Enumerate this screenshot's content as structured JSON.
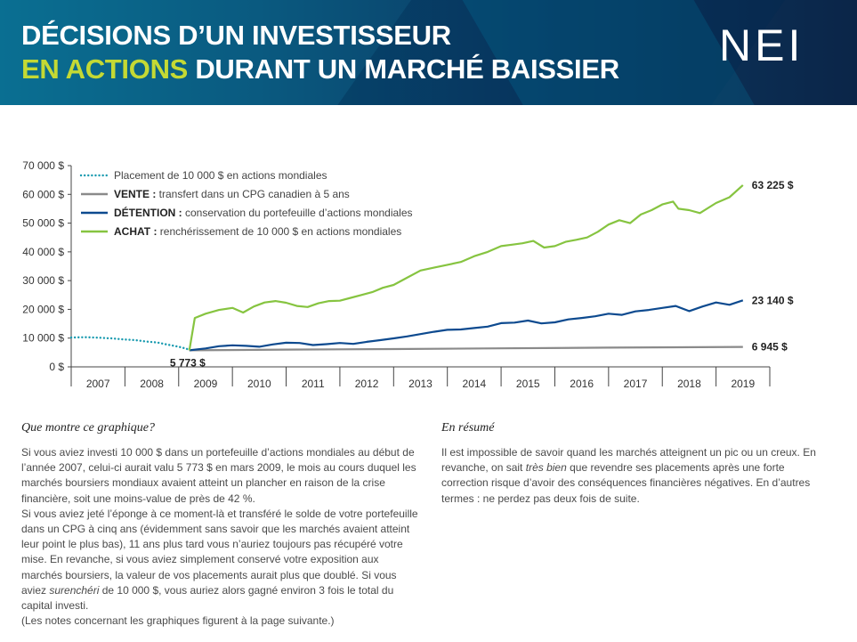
{
  "header": {
    "title_line1": "DÉCISIONS D’UN INVESTISSEUR",
    "title_line2_accent": "EN ACTIONS",
    "title_line2_rest": " DURANT UN MARCHÉ BAISSIER",
    "logo": "NEI",
    "colors": {
      "accent": "#c4d934",
      "banner_dark": "#0b2548",
      "banner_light": "#0a6f92"
    }
  },
  "chart_data": {
    "type": "line",
    "title": "",
    "xlabel": "",
    "ylabel": "",
    "ylim": [
      0,
      70000
    ],
    "y_ticks": [
      "0 $",
      "10 000 $",
      "20 000 $",
      "30 000 $",
      "40 000 $",
      "50 000 $",
      "60 000 $",
      "70 000 $"
    ],
    "y_tick_values": [
      0,
      10000,
      20000,
      30000,
      40000,
      50000,
      60000,
      70000
    ],
    "x_categories": [
      "2007",
      "2008",
      "2009",
      "2010",
      "2011",
      "2012",
      "2013",
      "2014",
      "2015",
      "2016",
      "2017",
      "2018",
      "2019"
    ],
    "xlim": [
      2007.0,
      2020.0
    ],
    "grid": false,
    "legend_position": "top-left",
    "legend": [
      {
        "bold": "",
        "text": "Placement de 10 000 $ en actions mondiales",
        "style": "dotted",
        "color": "#1b9bb0"
      },
      {
        "bold": "VENTE :",
        "text": " transfert dans un CPG canadien à 5 ans",
        "style": "solid",
        "color": "#8a8a8a"
      },
      {
        "bold": "DÉTENTION :",
        "text": " conservation du portefeuille d’actions mondiales",
        "style": "solid",
        "color": "#0d4a8f"
      },
      {
        "bold": "ACHAT :",
        "text": " renchérissement de 10 000 $ en actions mondiales",
        "style": "solid",
        "color": "#86c440"
      }
    ],
    "annotations": {
      "trough": "5 773 $",
      "achat_end": "63 225 $",
      "detention_end": "23 140 $",
      "vente_end": "6 945 $"
    },
    "series": [
      {
        "key": "placement",
        "color": "#1b9bb0",
        "style": "dotted",
        "x": [
          2007.0,
          2007.25,
          2007.5,
          2007.75,
          2008.0,
          2008.2,
          2008.4,
          2008.6,
          2008.75,
          2009.0,
          2009.15,
          2009.2
        ],
        "y": [
          10200,
          10300,
          10150,
          9900,
          9500,
          9300,
          8800,
          8500,
          7900,
          7000,
          6300,
          5773
        ]
      },
      {
        "key": "vente",
        "color": "#8a8a8a",
        "style": "solid",
        "x": [
          2009.2,
          2011.0,
          2013.0,
          2015.0,
          2017.0,
          2019.5
        ],
        "y": [
          5773,
          6000,
          6200,
          6450,
          6700,
          6945
        ]
      },
      {
        "key": "detention",
        "color": "#0d4a8f",
        "style": "solid",
        "x": [
          2009.2,
          2009.5,
          2009.75,
          2010.0,
          2010.25,
          2010.5,
          2010.75,
          2011.0,
          2011.25,
          2011.5,
          2011.75,
          2012.0,
          2012.25,
          2012.5,
          2012.75,
          2013.0,
          2013.25,
          2013.5,
          2013.75,
          2014.0,
          2014.25,
          2014.5,
          2014.75,
          2015.0,
          2015.25,
          2015.5,
          2015.75,
          2016.0,
          2016.25,
          2016.5,
          2016.75,
          2017.0,
          2017.25,
          2017.5,
          2017.75,
          2018.0,
          2018.25,
          2018.5,
          2018.75,
          2019.0,
          2019.25,
          2019.5
        ],
        "y": [
          5773,
          6400,
          7200,
          7500,
          7300,
          7000,
          7800,
          8400,
          8300,
          7600,
          7900,
          8300,
          8000,
          8700,
          9300,
          9900,
          10600,
          11400,
          12200,
          12900,
          13000,
          13500,
          14000,
          15200,
          15400,
          16100,
          15100,
          15500,
          16500,
          17000,
          17600,
          18500,
          18100,
          19300,
          19800,
          20500,
          21200,
          19400,
          21000,
          22400,
          21600,
          23140
        ]
      },
      {
        "key": "achat",
        "color": "#86c440",
        "style": "solid",
        "x": [
          2009.2,
          2009.3,
          2009.5,
          2009.75,
          2010.0,
          2010.2,
          2010.4,
          2010.6,
          2010.8,
          2011.0,
          2011.2,
          2011.4,
          2011.6,
          2011.8,
          2012.0,
          2012.2,
          2012.4,
          2012.6,
          2012.8,
          2013.0,
          2013.25,
          2013.5,
          2013.75,
          2014.0,
          2014.25,
          2014.5,
          2014.75,
          2015.0,
          2015.2,
          2015.4,
          2015.6,
          2015.8,
          2016.0,
          2016.2,
          2016.4,
          2016.6,
          2016.8,
          2017.0,
          2017.2,
          2017.4,
          2017.6,
          2017.8,
          2018.0,
          2018.2,
          2018.3,
          2018.5,
          2018.7,
          2019.0,
          2019.25,
          2019.5
        ],
        "y": [
          5773,
          17000,
          18500,
          19800,
          20500,
          18900,
          21000,
          22400,
          22900,
          22300,
          21200,
          20800,
          22100,
          22900,
          23000,
          24000,
          25000,
          26000,
          27500,
          28500,
          31000,
          33500,
          34500,
          35500,
          36500,
          38500,
          40000,
          42000,
          42500,
          43000,
          43800,
          41500,
          42000,
          43500,
          44200,
          45000,
          47000,
          49500,
          51000,
          50000,
          53000,
          54500,
          56500,
          57500,
          55000,
          54500,
          53500,
          57000,
          59000,
          63225
        ]
      }
    ]
  },
  "left": {
    "heading": "Que montre ce graphique?",
    "p1": "Si vous aviez investi 10 000 $ dans un portefeuille d’actions mondiales au début de l’année 2007, celui-ci aurait valu 5 773 $ en mars 2009, le mois au cours duquel les marchés boursiers mondiaux avaient atteint un plancher en raison de la crise financière, soit une moins-value de près de 42 %.",
    "p2_a": "Si vous aviez jeté l’éponge à ce moment-là et transféré le solde de votre portefeuille dans un CPG à cinq ans (évidemment sans savoir que les marchés avaient atteint leur point le plus bas), 11 ans plus tard vous n’auriez toujours pas récupéré votre mise. En revanche, si vous aviez simplement conservé votre exposition aux marchés boursiers, la valeur de vos placements aurait plus que doublé. Si vous aviez ",
    "p2_em": "surenchéri",
    "p2_b": " de 10 000 $, vous auriez alors gagné environ 3 fois le total du capital investi.",
    "p3": "(Les notes concernant les graphiques figurent à la page suivante.)"
  },
  "right": {
    "heading": "En résumé",
    "p1_a": "Il est impossible de savoir quand les marchés atteignent un pic ou un creux. En revanche, on sait ",
    "p1_em": "très bien",
    "p1_b": " que revendre ses placements après une forte correction risque d’avoir des conséquences financières négatives. En d’autres termes : ne perdez pas deux fois de suite."
  }
}
